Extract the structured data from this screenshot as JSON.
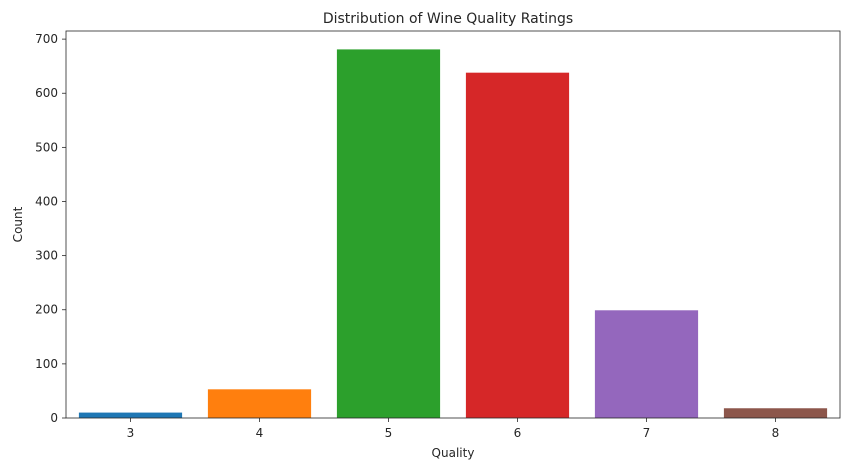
{
  "chart_data": {
    "type": "bar",
    "title": "Distribution of Wine Quality Ratings",
    "xlabel": "Quality",
    "ylabel": "Count",
    "categories": [
      "3",
      "4",
      "5",
      "6",
      "7",
      "8"
    ],
    "values": [
      10,
      53,
      681,
      638,
      199,
      18
    ],
    "colors": [
      "#1f77b4",
      "#ff7f0e",
      "#2ca02c",
      "#d62728",
      "#9467bd",
      "#8c564b"
    ],
    "ylim": [
      0,
      715
    ],
    "yticks": [
      0,
      100,
      200,
      300,
      400,
      500,
      600,
      700
    ],
    "grid": false,
    "legend": "none"
  }
}
